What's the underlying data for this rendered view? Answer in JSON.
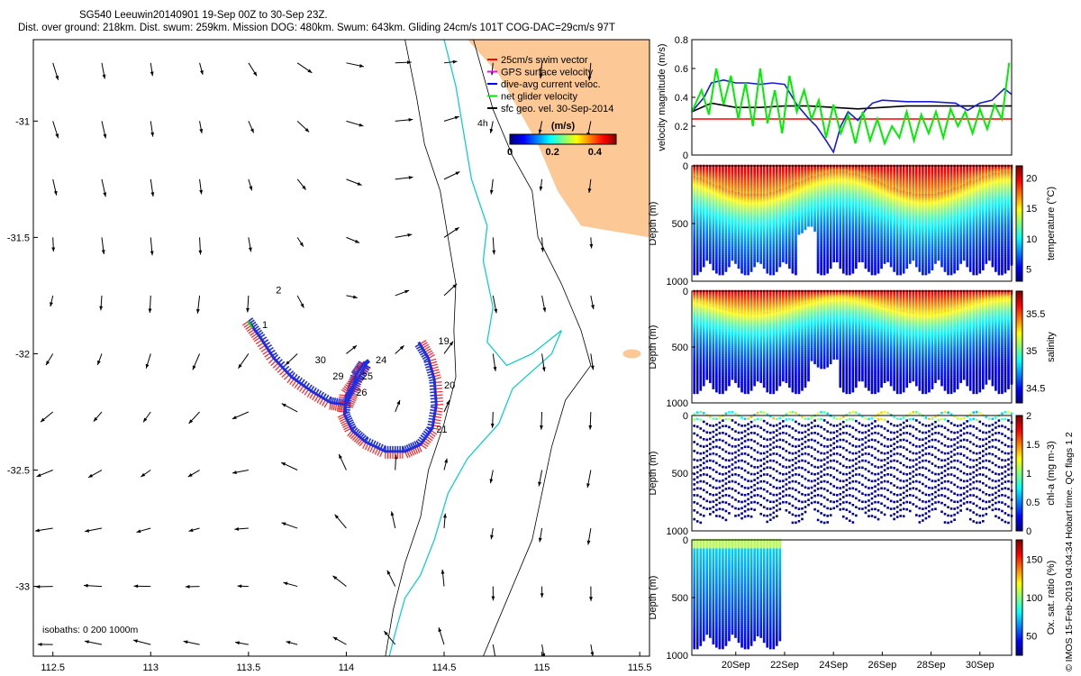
{
  "header": {
    "line1": "SG540 Leeuwin20140901 19-Sep 00Z to 30-Sep 23Z.",
    "line2": "Dist. over ground: 218km. Dist. swum: 259km. Mission DOG: 480km. Swum: 643km. Gliding 24cm/s 101T COG-DAC=29cm/s 97T"
  },
  "side_note": "© IMOS 15-Feb-2019 04:04:34 Hobart time. QC flags 1  2",
  "colors": {
    "land": "#fbc896",
    "coast": "#00cccc",
    "isobath": "#000000",
    "swim_vector": "#ff0000",
    "gps_velocity": "#ff00ff",
    "dac_velocity": "#0000ff",
    "net_velocity": "#00ee00",
    "surface_geo": "#000000",
    "track_red": "#ff2020",
    "track_blue": "#1f2fe0"
  },
  "chart_data": [
    {
      "type": "scatter",
      "name": "map",
      "x_ticks": [
        "112.5",
        "113",
        "113.5",
        "114",
        "114.5",
        "115",
        "115.5"
      ],
      "y_ticks": [
        "-31",
        "-31.5",
        "-32",
        "-32.5",
        "-33"
      ],
      "xlim": [
        112.4,
        115.55
      ],
      "ylim": [
        -33.3,
        -30.65
      ],
      "legend": [
        {
          "label": "25cm/s swim vector",
          "color": "#ff0000"
        },
        {
          "label": "GPS surface velocity",
          "color": "#ff00ff"
        },
        {
          "label": "dive-avg current veloc.",
          "color": "#0000ff"
        },
        {
          "label": "net glider velocity",
          "color": "#00ee00"
        },
        {
          "label": "sfc geo. vel. 30-Sep-2014",
          "color": "#000000"
        }
      ],
      "colorbar": {
        "title": "(m/s)",
        "ticks": [
          "0",
          "0.2",
          "0.4"
        ],
        "range": [
          0,
          0.5
        ]
      },
      "isobath_note": "isobaths: 0   200  1000m",
      "label_4h": "4h",
      "day_labels": [
        {
          "t": "2",
          "lon": 113.64,
          "lat": -31.74
        },
        {
          "t": "1",
          "lon": 113.57,
          "lat": -31.89
        },
        {
          "t": "30",
          "lon": 113.84,
          "lat": -32.04
        },
        {
          "t": "29",
          "lon": 113.93,
          "lat": -32.11
        },
        {
          "t": "24",
          "lon": 114.15,
          "lat": -32.04
        },
        {
          "t": "25",
          "lon": 114.08,
          "lat": -32.11
        },
        {
          "t": "26",
          "lon": 114.05,
          "lat": -32.18
        },
        {
          "t": "19",
          "lon": 114.47,
          "lat": -31.96
        },
        {
          "t": "20",
          "lon": 114.5,
          "lat": -32.15
        },
        {
          "t": "21",
          "lon": 114.46,
          "lat": -32.34
        }
      ],
      "track": [
        [
          113.5,
          -31.86
        ],
        [
          113.56,
          -31.93
        ],
        [
          113.63,
          -32.02
        ],
        [
          113.72,
          -32.1
        ],
        [
          113.82,
          -32.16
        ],
        [
          113.92,
          -32.21
        ],
        [
          114.0,
          -32.22
        ],
        [
          114.03,
          -32.16
        ],
        [
          114.05,
          -32.09
        ],
        [
          114.09,
          -32.04
        ],
        [
          114.1,
          -32.05
        ],
        [
          114.05,
          -32.12
        ],
        [
          114.0,
          -32.18
        ],
        [
          113.99,
          -32.26
        ],
        [
          114.03,
          -32.33
        ],
        [
          114.1,
          -32.38
        ],
        [
          114.2,
          -32.42
        ],
        [
          114.3,
          -32.42
        ],
        [
          114.38,
          -32.39
        ],
        [
          114.44,
          -32.32
        ],
        [
          114.46,
          -32.22
        ],
        [
          114.45,
          -32.11
        ],
        [
          114.42,
          -32.02
        ],
        [
          114.37,
          -31.95
        ]
      ]
    },
    {
      "type": "line",
      "name": "velocity",
      "ylabel": "velocity magnitude (m/s)",
      "ylim": [
        0,
        0.8
      ],
      "y_ticks": [
        "0",
        "0.2",
        "0.4",
        "0.6",
        "0.8"
      ],
      "xlim": [
        18.2,
        31.3
      ],
      "series": [
        {
          "color": "#ff0000",
          "x": [
            18.2,
            31.3
          ],
          "y": [
            0.25,
            0.25
          ]
        },
        {
          "color": "#000000",
          "x": [
            18.2,
            19,
            20,
            21,
            22,
            23,
            24,
            25,
            26,
            27,
            28,
            29,
            30,
            31,
            31.3
          ],
          "y": [
            0.3,
            0.36,
            0.33,
            0.33,
            0.34,
            0.34,
            0.33,
            0.32,
            0.33,
            0.34,
            0.34,
            0.34,
            0.34,
            0.34,
            0.34
          ]
        },
        {
          "color": "#1a1ad8",
          "x": [
            18.2,
            18.7,
            19,
            19.5,
            20,
            20.5,
            21,
            21.5,
            22,
            22.5,
            23,
            23.3,
            23.7,
            24,
            24.3,
            24.6,
            25,
            25.3,
            25.6,
            26,
            27,
            28,
            29,
            29.5,
            30,
            30.5,
            31,
            31.3
          ],
          "y": [
            0.3,
            0.4,
            0.5,
            0.52,
            0.5,
            0.5,
            0.49,
            0.5,
            0.49,
            0.35,
            0.25,
            0.2,
            0.1,
            0.02,
            0.2,
            0.3,
            0.24,
            0.31,
            0.36,
            0.38,
            0.37,
            0.37,
            0.36,
            0.31,
            0.36,
            0.38,
            0.46,
            0.42
          ]
        },
        {
          "color": "#00ee00",
          "x": [
            18.2,
            18.6,
            18.9,
            19.2,
            19.5,
            19.8,
            20.1,
            20.4,
            20.7,
            21,
            21.3,
            21.6,
            21.9,
            22.2,
            22.5,
            22.8,
            23.1,
            23.4,
            23.7,
            24,
            24.3,
            24.6,
            24.9,
            25.2,
            25.5,
            25.8,
            26.1,
            26.4,
            26.7,
            27,
            27.3,
            27.6,
            27.9,
            28.2,
            28.5,
            28.8,
            29.1,
            29.4,
            29.7,
            30,
            30.3,
            30.6,
            30.9,
            31.2
          ],
          "y": [
            0.3,
            0.45,
            0.28,
            0.6,
            0.35,
            0.55,
            0.25,
            0.5,
            0.2,
            0.6,
            0.22,
            0.45,
            0.15,
            0.55,
            0.3,
            0.45,
            0.25,
            0.38,
            0.12,
            0.35,
            0.15,
            0.28,
            0.08,
            0.3,
            0.1,
            0.25,
            0.08,
            0.2,
            0.12,
            0.3,
            0.1,
            0.28,
            0.15,
            0.3,
            0.12,
            0.32,
            0.2,
            0.3,
            0.15,
            0.32,
            0.18,
            0.35,
            0.25,
            0.64
          ]
        }
      ]
    },
    {
      "type": "heatmap",
      "name": "temperature",
      "ylabel": "Depth (m)",
      "cbar_label": "temperature (°C)",
      "ylim": [
        0,
        1000
      ],
      "y_ticks": [
        "0",
        "500",
        "1000"
      ],
      "cbar_ticks": [
        "5",
        "10",
        "15",
        "20"
      ],
      "crange": [
        3,
        22
      ]
    },
    {
      "type": "heatmap",
      "name": "salinity",
      "ylabel": "Depth (m)",
      "cbar_label": "salinity",
      "ylim": [
        0,
        1000
      ],
      "y_ticks": [
        "0",
        "500",
        "1000"
      ],
      "cbar_ticks": [
        "34.5",
        "35",
        "35.5"
      ],
      "crange": [
        34.3,
        35.8
      ]
    },
    {
      "type": "heatmap",
      "name": "chl-a",
      "ylabel": "Depth (m)",
      "cbar_label": "chl-a (mg m-3)",
      "ylim": [
        0,
        1000
      ],
      "y_ticks": [
        "0",
        "500",
        "1000"
      ],
      "cbar_ticks": [
        "0",
        "0.5",
        "1",
        "1.5",
        "2"
      ],
      "crange": [
        0,
        2
      ]
    },
    {
      "type": "heatmap",
      "name": "oxygen",
      "ylabel": "Depth (m)",
      "cbar_label": "Ox. sat. ratio (%)",
      "ylim": [
        0,
        1000
      ],
      "y_ticks": [
        "0",
        "500",
        "1000"
      ],
      "cbar_ticks": [
        "50",
        "100",
        "150"
      ],
      "crange": [
        25,
        175
      ],
      "x_ticks": [
        "20Sep",
        "22Sep",
        "24Sep",
        "26Sep",
        "28Sep",
        "30Sep"
      ],
      "x_tick_days": [
        20,
        22,
        24,
        26,
        28,
        30
      ]
    }
  ]
}
